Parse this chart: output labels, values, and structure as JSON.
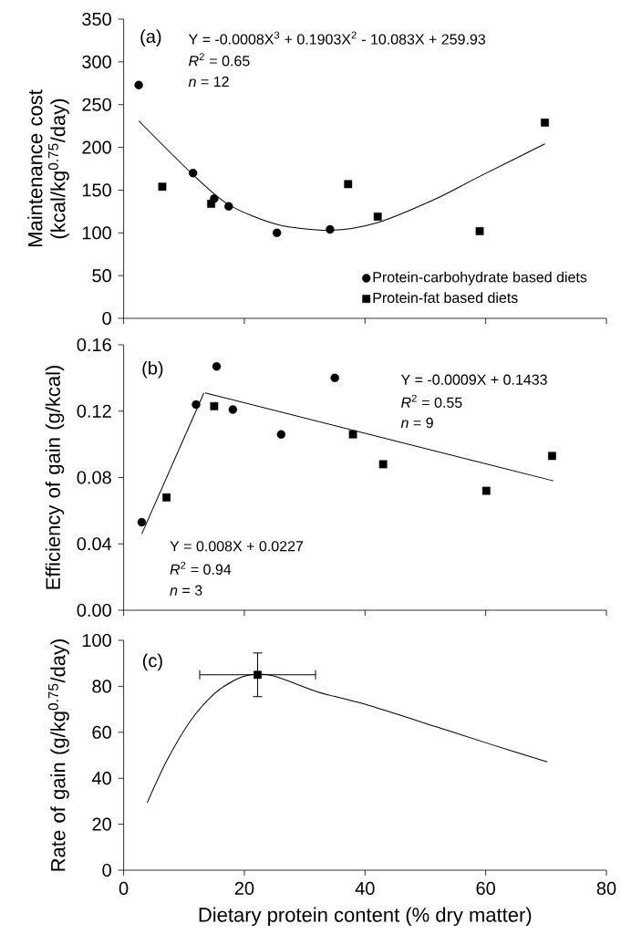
{
  "chart_data": [
    {
      "type": "scatter",
      "ylabel": "Maintenance cost (kcal/kg$^{0.75}$/day)",
      "xlim": [
        0,
        80
      ],
      "xticks": [
        0,
        20,
        40,
        60,
        80
      ],
      "ylim": [
        0,
        350
      ],
      "yticks": [
        0,
        50,
        100,
        150,
        200,
        250,
        300,
        350
      ],
      "tick_labels": "y",
      "legend": "bottom right",
      "annotations": [
        "(a)",
        "Y = -0.0008X$^{3}$ + 0.1903X$^{2}$ - 10.083X + 259.93",
        "*R*$^{2}$ = 0.65",
        "*n* = 12"
      ],
      "series": [
        {
          "name": "Protein-carbohydrate based diets",
          "color": "#000000",
          "marker": "circle",
          "x": [
            2.5,
            11.5,
            15.0,
            17.4,
            25.4,
            34.2
          ],
          "values": [
            273,
            170,
            140,
            131,
            100,
            104
          ]
        },
        {
          "name": "Protein-fat based diets",
          "color": "#000000",
          "marker": "square",
          "x": [
            6.4,
            14.5,
            37.2,
            42.1,
            59.0,
            69.8
          ],
          "values": [
            154,
            134,
            157,
            119,
            102,
            229
          ]
        },
        {
          "type": "line",
          "color": "#000000",
          "marker": "none",
          "x": [
            2.5,
            11.5,
            17.4,
            25.4,
            34.2,
            42.1,
            51.8,
            59.0,
            69.8
          ],
          "values": [
            231,
            168,
            133,
            110,
            103,
            112,
            140,
            166,
            204
          ]
        }
      ]
    },
    {
      "type": "scatter",
      "ylabel": "Efficiency of gain (g/kcal)",
      "xlim": [
        0,
        80
      ],
      "xticks": [
        0,
        20,
        40,
        60,
        80
      ],
      "ylim": [
        0,
        0.16
      ],
      "yticks": [
        {
          "value": 0,
          "label": "0.00"
        },
        0.04,
        0.08,
        0.12,
        0.16
      ],
      "tick_labels": "y",
      "annotations": [
        "(b)",
        "Y = -0.0009X + 0.1433",
        "*R*$^{2}$ = 0.55",
        "*n* = 9",
        "Y = 0.008X + 0.0227",
        "*R*$^{2}$ = 0.94",
        "*n* = 3"
      ],
      "series": [
        {
          "color": "#000000",
          "marker": "circle",
          "x": [
            3.0,
            12.0,
            15.4,
            18.1,
            26.1,
            35.0
          ],
          "values": [
            0.053,
            0.124,
            0.147,
            0.121,
            0.106,
            0.14
          ]
        },
        {
          "color": "#000000",
          "marker": "square",
          "x": [
            7.1,
            15.0,
            38.0,
            43.0,
            60.1,
            71.0
          ],
          "values": [
            0.068,
            0.123,
            0.106,
            0.088,
            0.072,
            0.093
          ]
        },
        {
          "type": "line",
          "color": "#000000",
          "marker": "none",
          "x": [
            3.0,
            13.3
          ],
          "values": [
            0.046,
            0.131
          ]
        },
        {
          "type": "line",
          "color": "#000000",
          "marker": "none",
          "x": [
            13.5,
            71.2
          ],
          "values": [
            0.131,
            0.078
          ]
        }
      ]
    },
    {
      "type": "line",
      "ylabel": "Rate of gain (g/kg$^{0.75}$/day)",
      "xlabel": "Dietary protein content (% dry matter)",
      "xlim": [
        0,
        80
      ],
      "xticks": [
        0,
        20,
        40,
        60,
        80
      ],
      "ylim": [
        0,
        100
      ],
      "yticks": [
        0,
        20,
        40,
        60,
        80,
        100
      ],
      "annotations": [
        "(c)"
      ],
      "series": [
        {
          "color": "#000000",
          "marker": "none",
          "x": [
            3.9,
            7.1,
            11.0,
            15.0,
            18.9,
            22.2,
            25.5,
            32.1,
            40.0,
            51.8,
            60.3,
            70.2
          ],
          "values": [
            29.3,
            47.4,
            64.7,
            76.7,
            83.3,
            85.3,
            84.0,
            77.6,
            72.2,
            62.4,
            55.2,
            47.1
          ]
        },
        {
          "type": "scatter",
          "color": "#000000",
          "marker": "square",
          "x": [
            22.2
          ],
          "values": [
            85
          ],
          "errors": [
            9.5
          ],
          "xerrors": [
            9.6
          ]
        }
      ]
    }
  ]
}
